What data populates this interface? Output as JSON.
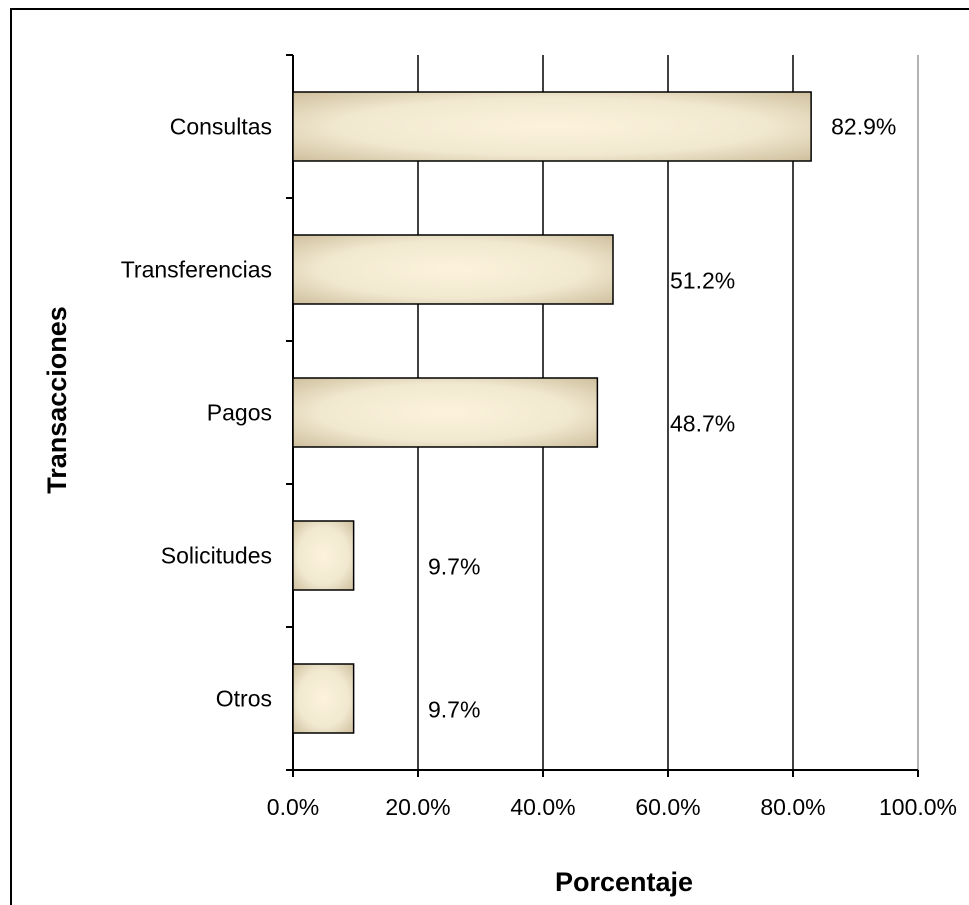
{
  "chart_data": {
    "type": "bar",
    "orientation": "horizontal",
    "title": "",
    "xlabel": "Porcentaje",
    "ylabel": "Transacciones",
    "xlim": [
      0,
      100
    ],
    "grid": true,
    "legend": "none",
    "categories": [
      "Consultas",
      "Transferencias",
      "Pagos",
      "Solicitudes",
      "Otros"
    ],
    "values": [
      82.9,
      51.2,
      48.7,
      9.7,
      9.7
    ],
    "data_labels": [
      "82.9%",
      "51.2%",
      "48.7%",
      "9.7%",
      "9.7%"
    ],
    "x_ticks": [
      0,
      20,
      40,
      60,
      80,
      100
    ],
    "x_tick_labels": [
      "0.0%",
      "20.0%",
      "40.0%",
      "60.0%",
      "80.0%",
      "100.0%"
    ],
    "colors": {
      "bar_light": "#fdf3dc",
      "bar_mid": "#f1e8d0",
      "bar_dark": "#c9b995",
      "bar_border": "#000000",
      "grid": "#000000",
      "frame": "#000000"
    }
  }
}
